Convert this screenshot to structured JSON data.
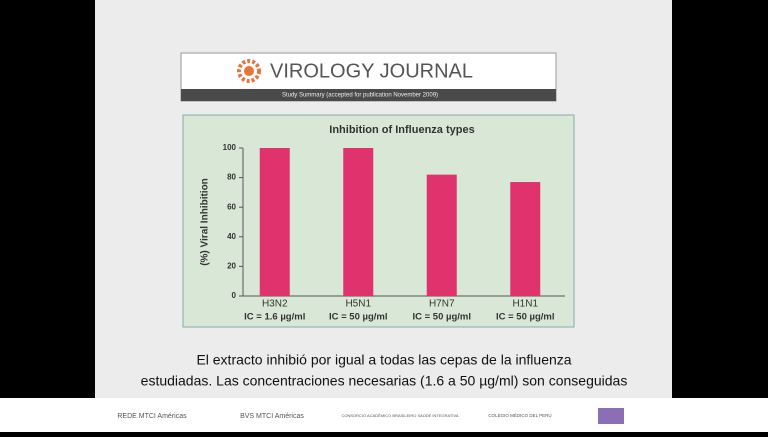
{
  "chart_data": {
    "type": "bar",
    "title": "Inhibition of Influenza types",
    "y_label": "(%) Viral Inhibition",
    "categories": [
      "H3N2",
      "H5N1",
      "H7N7",
      "H1N1"
    ],
    "category_notes": [
      "IC = 1.6 µg/ml",
      "IC = 50 µg/ml",
      "IC = 50 µg/ml",
      "IC = 50 µg/ml"
    ],
    "values": [
      100,
      100,
      82,
      77
    ],
    "color": "#e0336e",
    "ylim": [
      0,
      100
    ],
    "yticks": [
      0,
      20,
      40,
      60,
      80,
      100
    ],
    "grid": false
  },
  "slide": {
    "journal": "VIROLOGY JOURNAL",
    "journal_subtitle": "Study Summary (accepted for publication November 2009)",
    "caption": [
      "El extracto inhibió por igual a todas las cepas de la influenza",
      "estudiadas. Las concentraciones necesarias (1.6 a 50 µg/ml) son conseguidas"
    ],
    "footer": [
      "REDE MTCI Américas",
      "BVS MTCI Américas",
      "CONSORCIO ACADÊMICO BRASILEIRO SAÚDE INTEGRATIVA",
      "COLEGIO MÉDICO DEL PERÚ"
    ]
  }
}
